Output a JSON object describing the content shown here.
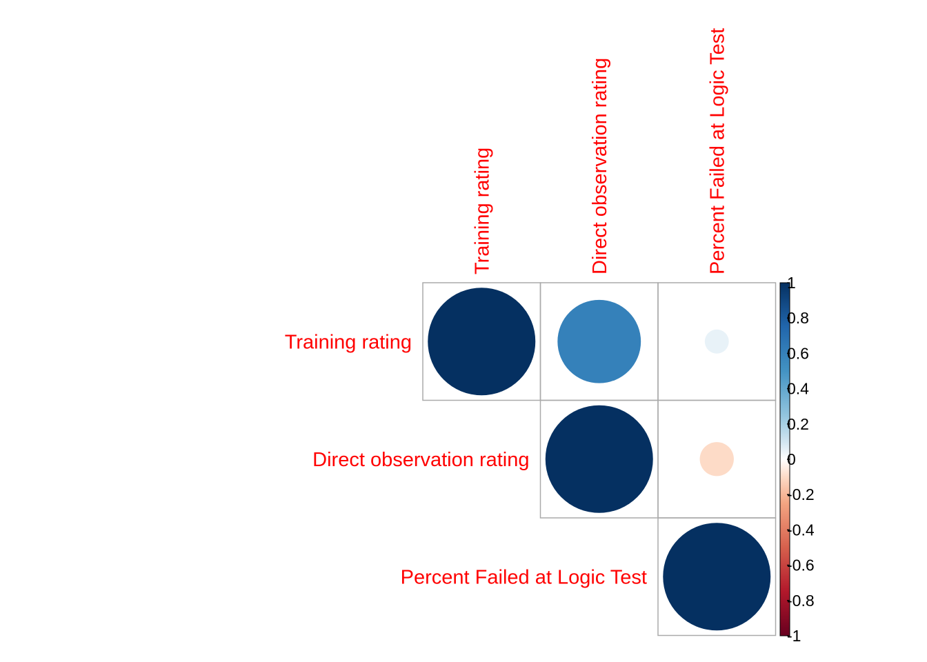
{
  "chart_data": {
    "type": "heatmap",
    "variant": "correlation-matrix-circles-upper",
    "variables": [
      "Training rating",
      "Direct observation rating",
      "Percent Failed at Logic Test"
    ],
    "cells": [
      {
        "row": 0,
        "col": 0,
        "value": 1.0
      },
      {
        "row": 0,
        "col": 1,
        "value": 0.6
      },
      {
        "row": 0,
        "col": 2,
        "value": 0.05
      },
      {
        "row": 1,
        "col": 1,
        "value": 1.0
      },
      {
        "row": 1,
        "col": 2,
        "value": -0.1
      },
      {
        "row": 2,
        "col": 2,
        "value": 1.0
      }
    ],
    "color_scale": {
      "range": [
        -1,
        1
      ],
      "ticks": [
        "1",
        "0.8",
        "0.6",
        "0.4",
        "0.2",
        "0",
        "-0.2",
        "-0.4",
        "-0.6",
        "-0.8",
        "-1"
      ],
      "tick_values": [
        1,
        0.8,
        0.6,
        0.4,
        0.2,
        0,
        -0.2,
        -0.4,
        -0.6,
        -0.8,
        -1
      ],
      "stops": [
        {
          "value": -1,
          "color": "#67001f"
        },
        {
          "value": -0.75,
          "color": "#b2182b"
        },
        {
          "value": -0.5,
          "color": "#d6604d"
        },
        {
          "value": -0.25,
          "color": "#f4a582"
        },
        {
          "value": -0.1,
          "color": "#fddbc7"
        },
        {
          "value": 0,
          "color": "#ffffff"
        },
        {
          "value": 0.1,
          "color": "#d1e5f0"
        },
        {
          "value": 0.25,
          "color": "#92c5de"
        },
        {
          "value": 0.5,
          "color": "#4393c3"
        },
        {
          "value": 0.75,
          "color": "#2166ac"
        },
        {
          "value": 1,
          "color": "#053061"
        }
      ]
    },
    "label_color": "#ff0000",
    "grid_color": "#aaaaaa"
  }
}
